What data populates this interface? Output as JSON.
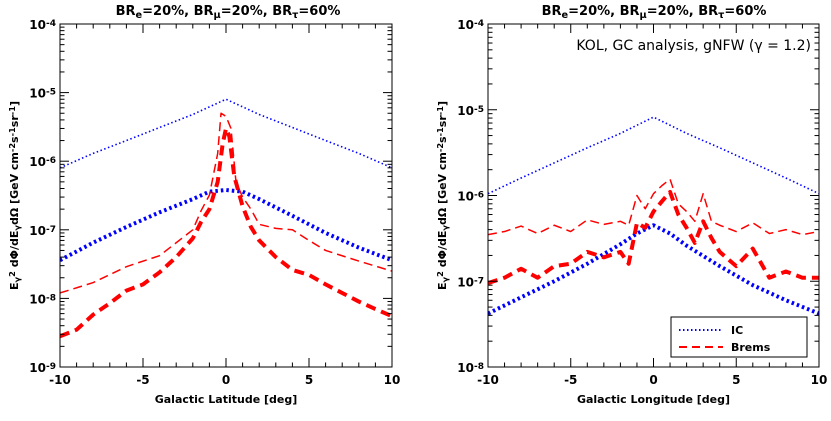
{
  "chart_data": [
    {
      "type": "line",
      "title_parts": [
        "BR",
        "e",
        "=20%, BR",
        "μ",
        "=20%, BR",
        "τ",
        "=60%"
      ],
      "xlabel": "Galactic Latitude [deg]",
      "ylabel_parts": [
        "E",
        "γ",
        "2",
        " dΦ/dE",
        "γ",
        "dΩ [GeV cm",
        "-2",
        "s",
        "-1",
        "sr",
        "-1",
        "]"
      ],
      "xlim": [
        -10,
        10
      ],
      "ylim": [
        1e-09,
        0.0001
      ],
      "yscale": "log",
      "xticks": [
        -10,
        -5,
        0,
        5,
        10
      ],
      "yticks": [
        {
          "value": 1e-09,
          "base": "10",
          "exp": "-9"
        },
        {
          "value": 1e-08,
          "base": "10",
          "exp": "-8"
        },
        {
          "value": 1e-07,
          "base": "10",
          "exp": "-7"
        },
        {
          "value": 1e-06,
          "base": "10",
          "exp": "-6"
        },
        {
          "value": 1e-05,
          "base": "10",
          "exp": "-5"
        },
        {
          "value": 0.0001,
          "base": "10",
          "exp": "-4"
        }
      ],
      "series": [
        {
          "group": "IC",
          "style": "thin-dotted",
          "color": "#0000ff",
          "x": [
            -10,
            -8,
            -6,
            -4,
            -2,
            -1,
            0,
            1,
            2,
            4,
            6,
            8,
            10
          ],
          "y": [
            8e-07,
            1.3e-06,
            2e-06,
            3.1e-06,
            4.8e-06,
            6.2e-06,
            8e-06,
            6.2e-06,
            4.8e-06,
            3.1e-06,
            2e-06,
            1.3e-06,
            8e-07
          ]
        },
        {
          "group": "IC",
          "style": "thick-dotted",
          "color": "#0000ff",
          "x": [
            -10,
            -8,
            -6,
            -4,
            -2,
            -1,
            0,
            1,
            2,
            4,
            6,
            8,
            10
          ],
          "y": [
            3.6e-08,
            6.5e-08,
            1.1e-07,
            1.8e-07,
            2.8e-07,
            3.6e-07,
            3.8e-07,
            3.6e-07,
            2.8e-07,
            1.6e-07,
            9e-08,
            5.5e-08,
            3.6e-08
          ]
        },
        {
          "group": "Brems",
          "style": "thin-dashed",
          "color": "#ff0000",
          "x": [
            -10,
            -8,
            -6,
            -4,
            -2,
            -1.5,
            -1,
            -0.5,
            -0.3,
            0,
            0.3,
            0.6,
            1,
            1.5,
            2,
            3,
            4,
            5,
            6,
            8,
            10
          ],
          "y": [
            1.2e-08,
            1.7e-08,
            2.9e-08,
            4.2e-08,
            1e-07,
            1.9e-07,
            3.2e-07,
            1.3e-06,
            5e-06,
            4.5e-06,
            3e-06,
            5e-07,
            3e-07,
            2e-07,
            1.2e-07,
            1.05e-07,
            1e-07,
            7e-08,
            5e-08,
            3.5e-08,
            2.5e-08
          ]
        },
        {
          "group": "Brems",
          "style": "thick-dashed",
          "color": "#ff0000",
          "x": [
            -10,
            -9,
            -8,
            -7,
            -6,
            -5,
            -4,
            -3,
            -2,
            -1.5,
            -1,
            -0.5,
            -0.2,
            0,
            0.2,
            0.5,
            1,
            1.5,
            2,
            3,
            4,
            5,
            6,
            7,
            8,
            9,
            10
          ],
          "y": [
            2.8e-09,
            3.5e-09,
            5.8e-09,
            8.5e-09,
            1.3e-08,
            1.6e-08,
            2.4e-08,
            4e-08,
            7.5e-08,
            1.3e-07,
            2e-07,
            5e-07,
            1.8e-06,
            3e-06,
            2.3e-06,
            6e-07,
            2.2e-07,
            1.1e-07,
            7e-08,
            4e-08,
            2.6e-08,
            2.2e-08,
            1.6e-08,
            1.2e-08,
            9e-09,
            7e-09,
            5.5e-09
          ]
        }
      ]
    },
    {
      "type": "line",
      "title_parts": [
        "BR",
        "e",
        "=20%, BR",
        "μ",
        "=20%, BR",
        "τ",
        "=60%"
      ],
      "annotation": "KOL, GC analysis, gNFW (γ = 1.2)",
      "xlabel": "Galactic Longitude [deg]",
      "ylabel_parts": [
        "E",
        "γ",
        "2",
        " dΦ/dE",
        "γ",
        "dΩ [GeV cm",
        "-2",
        "s",
        "-1",
        "sr",
        "-1",
        "]"
      ],
      "xlim": [
        -10,
        10
      ],
      "ylim": [
        1e-08,
        0.0001
      ],
      "yscale": "log",
      "xticks": [
        -10,
        -5,
        0,
        5,
        10
      ],
      "yticks": [
        {
          "value": 1e-08,
          "base": "10",
          "exp": "-8"
        },
        {
          "value": 1e-07,
          "base": "10",
          "exp": "-7"
        },
        {
          "value": 1e-06,
          "base": "10",
          "exp": "-6"
        },
        {
          "value": 1e-05,
          "base": "10",
          "exp": "-5"
        },
        {
          "value": 0.0001,
          "base": "10",
          "exp": "-4"
        }
      ],
      "legend": {
        "position": "bottom-right",
        "entries": [
          {
            "label": "IC",
            "color": "#0000ff",
            "style": "dotted"
          },
          {
            "label": "Brems",
            "color": "#ff0000",
            "style": "dashed"
          }
        ]
      },
      "series": [
        {
          "group": "IC",
          "style": "thin-dotted",
          "color": "#0000ff",
          "x": [
            -10,
            -8,
            -6,
            -4,
            -2,
            -1,
            0,
            1,
            2,
            4,
            6,
            8,
            10
          ],
          "y": [
            1.05e-06,
            1.6e-06,
            2.4e-06,
            3.6e-06,
            5.3e-06,
            6.6e-06,
            8.2e-06,
            6.6e-06,
            5.3e-06,
            3.6e-06,
            2.4e-06,
            1.6e-06,
            1.05e-06
          ]
        },
        {
          "group": "IC",
          "style": "thick-dotted",
          "color": "#0000ff",
          "x": [
            -10,
            -8,
            -6,
            -4,
            -2,
            -1,
            0,
            1,
            2,
            4,
            6,
            8,
            10
          ],
          "y": [
            4.2e-08,
            6.5e-08,
            1e-07,
            1.6e-07,
            2.7e-07,
            3.6e-07,
            4.5e-07,
            3.6e-07,
            2.6e-07,
            1.5e-07,
            9e-08,
            6e-08,
            4.2e-08
          ]
        },
        {
          "group": "Brems",
          "style": "thin-dashed",
          "color": "#ff0000",
          "x": [
            -10,
            -9,
            -8,
            -7,
            -6,
            -5,
            -4,
            -3,
            -2,
            -1.5,
            -1,
            -0.5,
            0,
            0.5,
            1,
            1.5,
            2,
            2.5,
            3,
            3.5,
            4,
            5,
            6,
            7,
            8,
            9,
            10
          ],
          "y": [
            3.5e-07,
            3.8e-07,
            4.4e-07,
            3.6e-07,
            4.5e-07,
            3.8e-07,
            5.2e-07,
            4.6e-07,
            5e-07,
            4.5e-07,
            1e-06,
            7e-07,
            1.05e-06,
            1.3e-06,
            1.55e-06,
            8e-07,
            6.5e-07,
            5e-07,
            1.05e-06,
            5e-07,
            4.5e-07,
            3.8e-07,
            4.8e-07,
            3.6e-07,
            4e-07,
            3.5e-07,
            3.8e-07
          ]
        },
        {
          "group": "Brems",
          "style": "thick-dashed",
          "color": "#ff0000",
          "x": [
            -10,
            -9,
            -8,
            -7,
            -6,
            -5,
            -4,
            -3,
            -2,
            -1.5,
            -1,
            -0.5,
            0,
            0.5,
            1,
            1.5,
            2,
            2.5,
            3,
            3.5,
            4,
            5,
            6,
            7,
            8,
            9,
            10
          ],
          "y": [
            9.5e-08,
            1.1e-07,
            1.4e-07,
            1.1e-07,
            1.5e-07,
            1.6e-07,
            2.2e-07,
            1.9e-07,
            2.2e-07,
            1.6e-07,
            4.8e-07,
            4.2e-07,
            6.5e-07,
            8.5e-07,
            1.1e-06,
            6e-07,
            4.2e-07,
            2.8e-07,
            5e-07,
            3.2e-07,
            2.2e-07,
            1.5e-07,
            2.4e-07,
            1.1e-07,
            1.3e-07,
            1.1e-07,
            1.1e-07
          ]
        }
      ]
    }
  ]
}
